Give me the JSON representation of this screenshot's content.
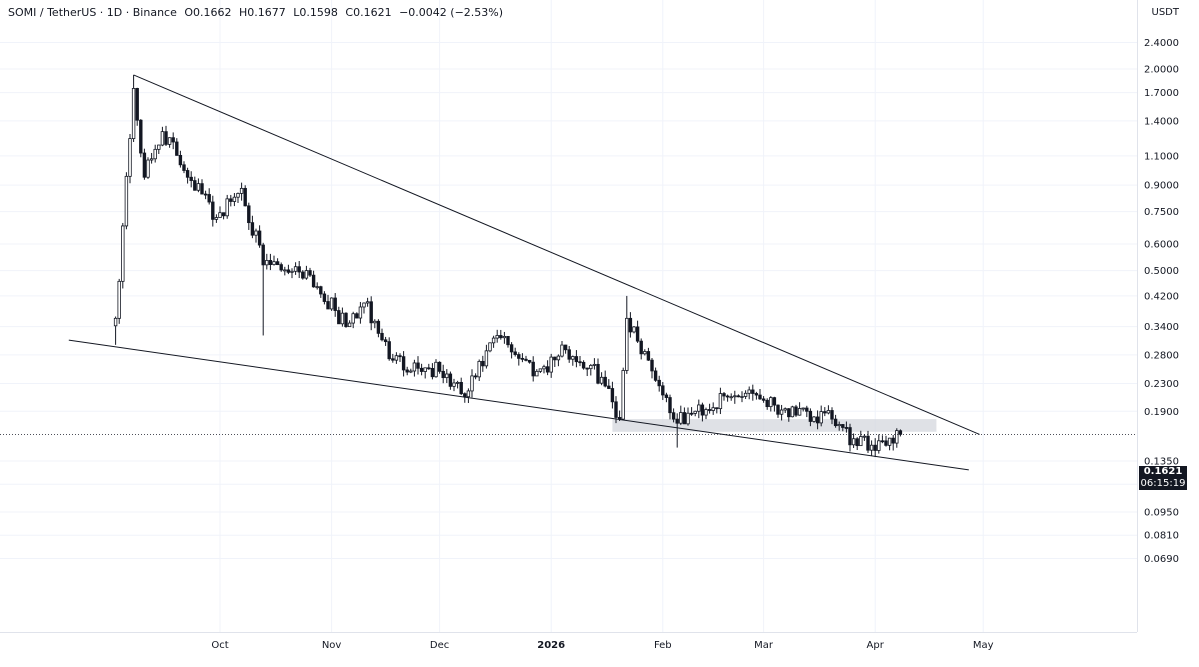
{
  "header": {
    "symbol": "SOMI / TetherUS · 1D · Binance",
    "open": "O0.1662",
    "high": "H0.1677",
    "low": "L0.1598",
    "close": "C0.1621",
    "change": "−0.0042 (−2.53%)"
  },
  "axis": {
    "currency": "USDT",
    "last_price": "0.1621",
    "countdown": "06:15:19"
  },
  "colors": {
    "candle": "#131722",
    "zone": "#d1d4dc",
    "grid": "#f0f3fa"
  },
  "chart_data": {
    "type": "candlestick",
    "title": "",
    "y_scale": "log",
    "y_ticks": [
      2.4,
      2.0,
      1.7,
      1.4,
      1.1,
      0.9,
      0.75,
      0.6,
      0.5,
      0.42,
      0.34,
      0.28,
      0.23,
      0.19,
      0.135,
      0.115,
      0.095,
      0.081,
      0.069
    ],
    "y_tick_labels": [
      "2.4000",
      "2.0000",
      "1.7000",
      "1.4000",
      "1.1000",
      "0.9000",
      "0.7500",
      "0.6000",
      "0.5000",
      "0.4200",
      "0.3400",
      "0.2800",
      "0.2300",
      "0.1900",
      "0.1350",
      "0.1150",
      "0.0950",
      "0.0810",
      "0.0690"
    ],
    "x_ticks": [
      {
        "label": "Oct",
        "date": "2025-10-01",
        "bold": false
      },
      {
        "label": "Nov",
        "date": "2025-11-01",
        "bold": false
      },
      {
        "label": "Dec",
        "date": "2025-12-01",
        "bold": false
      },
      {
        "label": "2026",
        "date": "2026-01-01",
        "bold": true
      },
      {
        "label": "Feb",
        "date": "2026-02-01",
        "bold": false
      },
      {
        "label": "Mar",
        "date": "2026-03-01",
        "bold": false
      },
      {
        "label": "Apr",
        "date": "2026-04-01",
        "bold": false
      },
      {
        "label": "May",
        "date": "2026-05-01",
        "bold": false
      }
    ],
    "key_points": [
      {
        "date": "2025-09-02",
        "close": 0.36,
        "low": 0.3
      },
      {
        "date": "2025-09-07",
        "close": 1.75,
        "high": 1.92
      },
      {
        "date": "2025-09-10",
        "close": 0.95
      },
      {
        "date": "2025-09-15",
        "close": 1.3
      },
      {
        "date": "2025-09-30",
        "close": 0.72
      },
      {
        "date": "2025-10-07",
        "close": 0.88
      },
      {
        "date": "2025-10-13",
        "close": 0.52,
        "low": 0.32
      },
      {
        "date": "2025-10-25",
        "close": 0.5
      },
      {
        "date": "2025-11-05",
        "close": 0.34
      },
      {
        "date": "2025-11-10",
        "close": 0.4
      },
      {
        "date": "2025-11-18",
        "close": 0.27
      },
      {
        "date": "2025-12-01",
        "close": 0.25
      },
      {
        "date": "2025-12-08",
        "close": 0.21
      },
      {
        "date": "2025-12-17",
        "close": 0.32
      },
      {
        "date": "2025-12-28",
        "close": 0.25
      },
      {
        "date": "2026-01-05",
        "close": 0.29
      },
      {
        "date": "2026-01-15",
        "close": 0.24
      },
      {
        "date": "2026-01-20",
        "close": 0.18
      },
      {
        "date": "2026-01-22",
        "close": 0.36,
        "high": 0.42
      },
      {
        "date": "2026-01-28",
        "close": 0.27
      },
      {
        "date": "2026-02-05",
        "close": 0.175,
        "low": 0.148
      },
      {
        "date": "2026-02-10",
        "close": 0.19
      },
      {
        "date": "2026-02-25",
        "close": 0.22
      },
      {
        "date": "2026-03-10",
        "close": 0.185
      },
      {
        "date": "2026-03-20",
        "close": 0.18
      },
      {
        "date": "2026-03-27",
        "close": 0.15
      },
      {
        "date": "2026-04-03",
        "close": 0.155
      },
      {
        "date": "2026-04-08",
        "close": 0.1621
      }
    ],
    "last_candle": {
      "open": 0.1662,
      "high": 0.1677,
      "low": 0.1598,
      "close": 0.1621
    },
    "trendlines": [
      {
        "name": "upper",
        "from": {
          "date": "2025-09-07",
          "price": 1.92
        },
        "to": {
          "date": "2026-04-30",
          "price": 0.162
        }
      },
      {
        "name": "lower",
        "from": {
          "date": "2025-08-20",
          "price": 0.31
        },
        "to": {
          "date": "2026-04-27",
          "price": 0.127
        }
      }
    ],
    "zone": {
      "from_date": "2026-01-18",
      "to_date": "2026-04-18",
      "price_low": 0.165,
      "price_high": 0.18
    }
  }
}
